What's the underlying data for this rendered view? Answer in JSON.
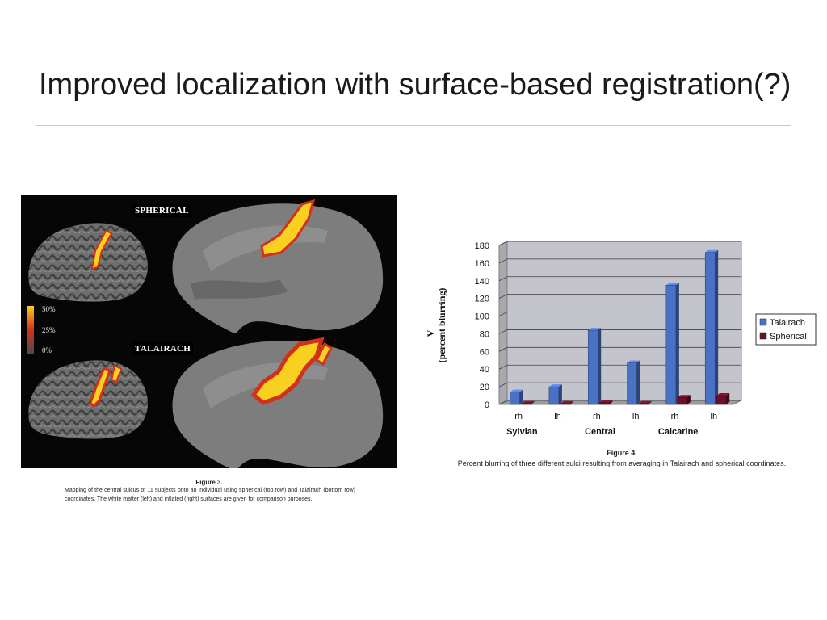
{
  "slide": {
    "title": "Improved localization with surface-based registration(?)"
  },
  "figure3": {
    "label_top": "SPHERICAL",
    "label_bottom": "TALAIRACH",
    "scale_labels": [
      "50%",
      "25%",
      "0%"
    ],
    "caption_title": "Figure 3.",
    "caption_text": "Mapping of the central sulcus of 11 subjects onto an individual using spherical (top row) and Talairach (bottom row) coordinates. The white matter (left) and inflated (right) surfaces are given for comparison purposes."
  },
  "figure4": {
    "caption_title": "Figure 4.",
    "caption_text": "Percent blurring of three different sulci resulting from averaging in Talairach and spherical coordinates."
  },
  "colors": {
    "talairach": "#4a72c4",
    "spherical": "#6b0f2a",
    "plot_bg": "#c4c4cc",
    "heat_high": "#f7d020",
    "heat_mid": "#d2301c"
  },
  "chart_data": {
    "type": "bar",
    "categories": [
      "rh",
      "lh",
      "rh",
      "lh",
      "rh",
      "lh"
    ],
    "groups": [
      "Sylvian",
      "Central",
      "Calcarine"
    ],
    "series": [
      {
        "name": "Talairach",
        "values": [
          14,
          20,
          84,
          47,
          135,
          172
        ]
      },
      {
        "name": "Spherical",
        "values": [
          1,
          1,
          2,
          1,
          8,
          10
        ]
      }
    ],
    "ylabel": "V (percent blurring)",
    "ylim": [
      0,
      180
    ],
    "yticks": [
      0,
      20,
      40,
      60,
      80,
      100,
      120,
      140,
      160,
      180
    ],
    "grid": true,
    "legend": "right",
    "three_d": true
  }
}
